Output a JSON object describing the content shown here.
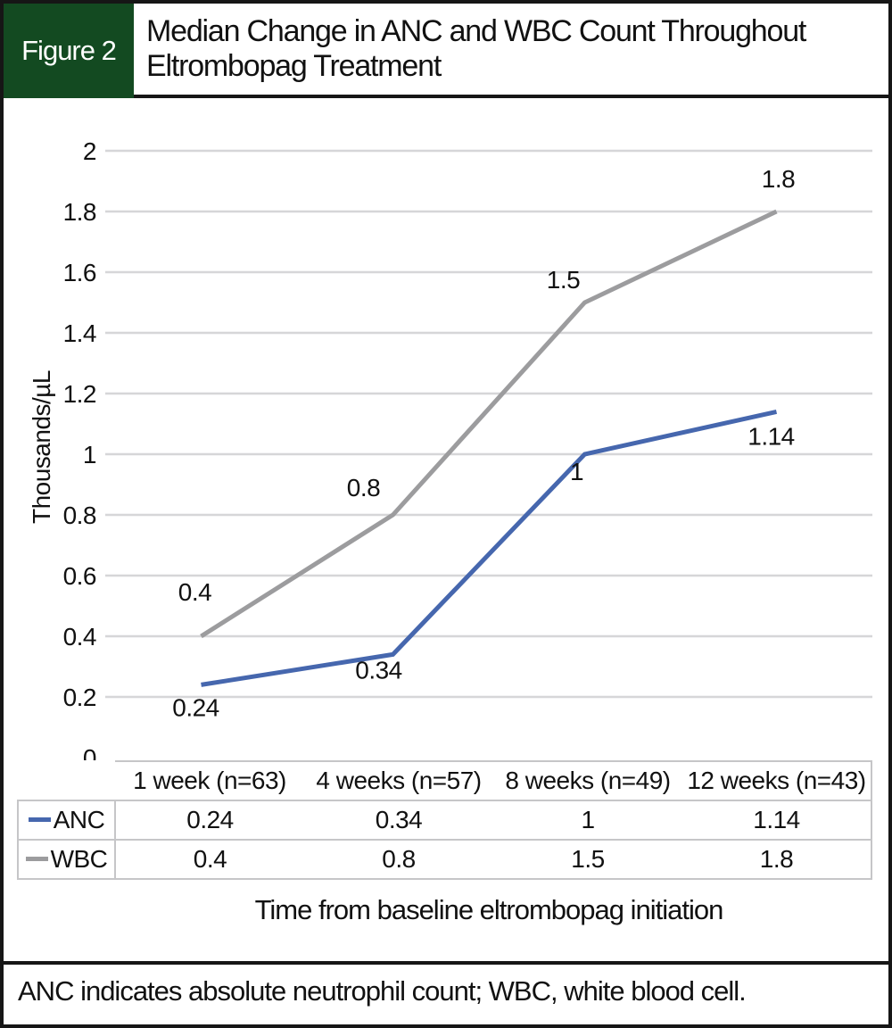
{
  "figure": {
    "label": "Figure 2",
    "title": "Median Change in ANC and WBC Count Throughout Eltrombopag Treatment",
    "footnote": "ANC indicates absolute neutrophil count; WBC, white blood cell."
  },
  "colors": {
    "header_green": "#134a21",
    "anc_blue": "#4667ae",
    "wbc_gray": "#9c9c9e",
    "gridline": "#d6d6d8",
    "table_border": "#c6c6c8"
  },
  "chart_data": {
    "type": "line",
    "title": "Median Change in ANC and WBC Count Throughout Eltrombopag Treatment",
    "categories": [
      "1 week (n=63)",
      "4 weeks (n=57)",
      "8 weeks (n=49)",
      "12 weeks (n=43)"
    ],
    "series": [
      {
        "name": "ANC",
        "values": [
          0.24,
          0.34,
          1,
          1.14
        ],
        "labels": [
          "0.24",
          "0.34",
          "1",
          "1.14"
        ],
        "color_key": "anc_blue"
      },
      {
        "name": "WBC",
        "values": [
          0.4,
          0.8,
          1.5,
          1.8
        ],
        "labels": [
          "0.4",
          "0.8",
          "1.5",
          "1.8"
        ],
        "color_key": "wbc_gray"
      }
    ],
    "xlabel": "Time from baseline eltrombopag initiation",
    "ylabel": "Thousands/µL",
    "ylim": [
      0,
      2
    ],
    "ytick_step": 0.2,
    "yticks": [
      "0",
      "0.2",
      "0.4",
      "0.6",
      "0.8",
      "1",
      "1.2",
      "1.4",
      "1.6",
      "1.8",
      "2"
    ],
    "grid": true,
    "legend_position": "table-left"
  }
}
